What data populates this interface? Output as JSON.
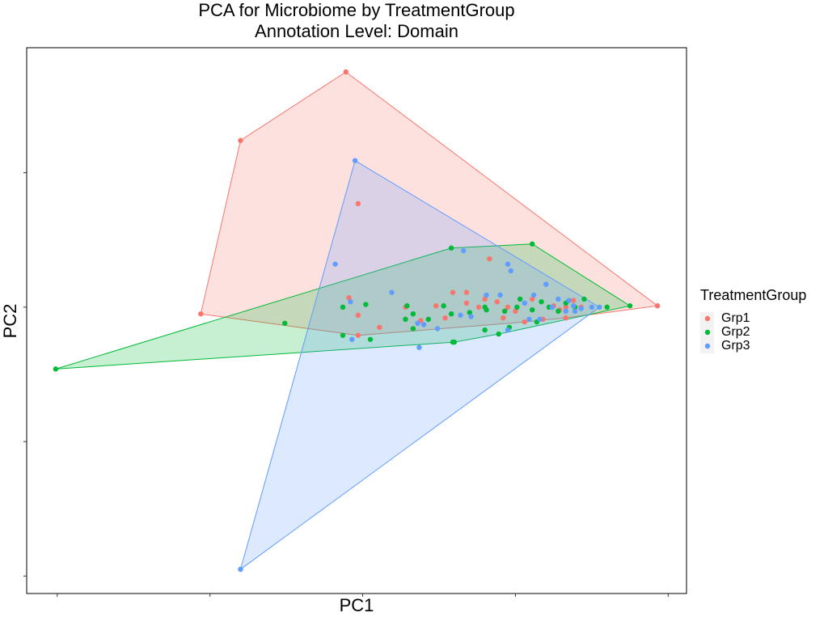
{
  "chart_data": {
    "type": "scatter",
    "title": "PCA for Microbiome by TreatmentGroup",
    "subtitle": "Annotation Level: Domain",
    "x_label": "PC1",
    "y_label": "PC2",
    "legend_title": "TreatmentGroup",
    "xlim": [
      -0.2,
      4.12
    ],
    "ylim": [
      -0.13,
      3.93
    ],
    "xticks": [
      0,
      1,
      2,
      3,
      4
    ],
    "yticks": [
      0,
      1,
      2,
      3
    ],
    "hull": true,
    "series": [
      {
        "name": "Grp1",
        "color": "#F8766D",
        "x": [
          1.89,
          1.2,
          0.94,
          3.93,
          1.97,
          1.97,
          2.83,
          1.91,
          1.97,
          2.11,
          2.28,
          2.48,
          2.59,
          2.68,
          2.68,
          2.76,
          2.88,
          2.95,
          2.92,
          3.0,
          3.06,
          3.18,
          3.29,
          3.33,
          3.38,
          3.43,
          3.11,
          3.25,
          2.8,
          2.54,
          2.38,
          3.33
        ],
        "y": [
          3.75,
          3.24,
          1.95,
          2.01,
          2.77,
          1.79,
          2.36,
          2.07,
          1.94,
          1.85,
          2.0,
          2.01,
          2.11,
          2.11,
          2.03,
          2.0,
          2.04,
          2.0,
          1.92,
          1.97,
          1.89,
          1.91,
          1.98,
          2.0,
          2.05,
          2.0,
          2.06,
          2.01,
          2.06,
          1.92,
          1.9,
          1.92
        ]
      },
      {
        "name": "Grp2",
        "color": "#00BA38",
        "x": [
          -0.01,
          1.49,
          2.58,
          3.11,
          3.75,
          1.87,
          1.87,
          2.02,
          2.05,
          2.29,
          2.28,
          2.33,
          2.33,
          2.43,
          2.53,
          2.58,
          2.59,
          2.6,
          2.7,
          2.8,
          2.81,
          2.89,
          2.93,
          2.96,
          3.01,
          3.11,
          3.17,
          3.22,
          3.28,
          3.33,
          3.39,
          3.45,
          3.6,
          3.03,
          2.8,
          3.14
        ],
        "y": [
          1.54,
          1.88,
          2.44,
          2.47,
          2.01,
          2.0,
          1.79,
          2.02,
          1.76,
          2.01,
          1.91,
          1.95,
          1.84,
          1.91,
          2.01,
          1.95,
          1.74,
          1.74,
          1.96,
          2.0,
          1.98,
          1.8,
          1.97,
          1.85,
          2.0,
          1.98,
          2.04,
          2.0,
          1.97,
          2.03,
          2.0,
          2.06,
          2.0,
          2.06,
          1.83,
          1.89
        ]
      },
      {
        "name": "Grp3",
        "color": "#619CFF",
        "x": [
          1.95,
          1.2,
          1.82,
          2.19,
          1.92,
          1.93,
          2.37,
          2.36,
          2.4,
          2.49,
          2.66,
          2.64,
          2.71,
          2.81,
          2.9,
          2.95,
          2.97,
          3.06,
          3.12,
          3.2,
          3.24,
          3.28,
          3.33,
          3.38,
          3.43,
          3.5,
          3.55,
          2.95,
          3.09,
          3.16,
          3.39,
          3.35
        ],
        "y": [
          3.09,
          0.05,
          2.32,
          2.11,
          2.04,
          1.76,
          1.7,
          1.88,
          1.87,
          1.84,
          2.42,
          1.94,
          1.93,
          2.09,
          2.09,
          2.32,
          2.27,
          2.03,
          2.09,
          2.17,
          2.0,
          2.06,
          1.97,
          2.01,
          1.99,
          2.0,
          2.0,
          1.83,
          1.91,
          1.91,
          1.97,
          2.05
        ]
      }
    ]
  }
}
